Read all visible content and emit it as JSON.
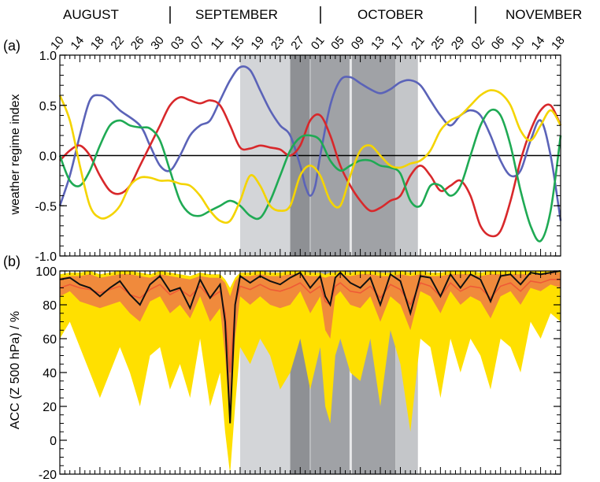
{
  "chart_data": [
    {
      "type": "line",
      "panel_label": "(a)",
      "ylabel": "weather regime index",
      "ylim": [
        -1.0,
        1.0
      ],
      "yticks": [
        -1.0,
        -0.5,
        0.0,
        0.5,
        1.0
      ],
      "ytick_labels": [
        "-1.0",
        "-0.5",
        "0.0",
        "0.5",
        "1.0"
      ],
      "months": [
        "AUGUST",
        "SEPTEMBER",
        "OCTOBER",
        "NOVEMBER"
      ],
      "x_day_labels": [
        "10",
        "14",
        "18",
        "22",
        "26",
        "30",
        "03",
        "07",
        "11",
        "15",
        "19",
        "23",
        "27",
        "01",
        "05",
        "09",
        "13",
        "17",
        "21",
        "25",
        "29",
        "02",
        "06",
        "10",
        "14",
        "18"
      ],
      "x_label_days": [
        0,
        4,
        8,
        12,
        16,
        20,
        24,
        28,
        32,
        36,
        40,
        44,
        48,
        52,
        56,
        60,
        64,
        68,
        72,
        76,
        80,
        84,
        88,
        92,
        96,
        100
      ],
      "xlim_days": [
        0,
        100
      ],
      "shading": [
        {
          "from": 36,
          "to": 46,
          "shade": "light"
        },
        {
          "from": 46,
          "to": 50,
          "shade": "dark"
        },
        {
          "from": 50,
          "to": 58,
          "shade": "darker"
        },
        {
          "from": 58,
          "to": 67,
          "shade": "darker"
        },
        {
          "from": 67,
          "to": 71.5,
          "shade": "medium"
        }
      ],
      "series": [
        {
          "color": "#5b63b8",
          "x": [
            0,
            2,
            4,
            6,
            8,
            10,
            12,
            16,
            18,
            20,
            22,
            24,
            26,
            28,
            30,
            32,
            34,
            36,
            38,
            40,
            42,
            44,
            46,
            48,
            49,
            50,
            51,
            52,
            54,
            56,
            58,
            60,
            62,
            64,
            66,
            68,
            70,
            72,
            74,
            76,
            78,
            80,
            82,
            84,
            86,
            88,
            90,
            92,
            94,
            96,
            98,
            100
          ],
          "y": [
            -0.5,
            -0.2,
            0.2,
            0.55,
            0.6,
            0.55,
            0.45,
            0.3,
            0.1,
            -0.1,
            -0.15,
            0.0,
            0.2,
            0.3,
            0.35,
            0.55,
            0.75,
            0.88,
            0.85,
            0.65,
            0.45,
            0.3,
            0.2,
            -0.1,
            -0.3,
            -0.4,
            -0.3,
            0.0,
            0.5,
            0.75,
            0.78,
            0.72,
            0.66,
            0.62,
            0.66,
            0.73,
            0.75,
            0.7,
            0.55,
            0.4,
            0.3,
            0.4,
            0.45,
            0.4,
            0.2,
            -0.05,
            -0.2,
            -0.15,
            0.15,
            0.35,
            0.0,
            -0.65
          ]
        },
        {
          "color": "#d8282b",
          "x": [
            0,
            2,
            4,
            6,
            8,
            10,
            12,
            14,
            16,
            18,
            20,
            22,
            24,
            26,
            28,
            30,
            32,
            34,
            36,
            38,
            40,
            42,
            44,
            46,
            48,
            50,
            52,
            54,
            56,
            58,
            60,
            62,
            64,
            66,
            68,
            70,
            72,
            74,
            76,
            78,
            80,
            82,
            84,
            86,
            88,
            90,
            92,
            94,
            96,
            98,
            100
          ],
          "y": [
            -0.05,
            0.05,
            0.1,
            0.0,
            -0.2,
            -0.35,
            -0.38,
            -0.3,
            -0.1,
            0.1,
            0.3,
            0.5,
            0.58,
            0.55,
            0.52,
            0.55,
            0.5,
            0.3,
            0.08,
            0.07,
            0.1,
            0.08,
            0.06,
            0.0,
            0.1,
            0.35,
            0.4,
            0.2,
            -0.1,
            -0.3,
            -0.45,
            -0.55,
            -0.52,
            -0.45,
            -0.4,
            -0.2,
            -0.1,
            -0.2,
            -0.35,
            -0.3,
            -0.25,
            -0.4,
            -0.7,
            -0.8,
            -0.75,
            -0.45,
            -0.05,
            0.25,
            0.45,
            0.5,
            0.3
          ]
        },
        {
          "color": "#1faa54",
          "x": [
            0,
            2,
            4,
            6,
            8,
            10,
            12,
            14,
            16,
            18,
            20,
            22,
            24,
            26,
            28,
            30,
            32,
            34,
            36,
            38,
            40,
            42,
            44,
            46,
            48,
            50,
            52,
            54,
            56,
            58,
            60,
            62,
            64,
            66,
            68,
            70,
            72,
            74,
            76,
            78,
            80,
            82,
            84,
            86,
            88,
            90,
            92,
            94,
            96,
            98,
            100
          ],
          "y": [
            0.0,
            -0.25,
            -0.3,
            -0.15,
            0.1,
            0.3,
            0.35,
            0.3,
            0.28,
            0.27,
            0.15,
            -0.15,
            -0.45,
            -0.58,
            -0.6,
            -0.55,
            -0.5,
            -0.45,
            -0.5,
            -0.6,
            -0.62,
            -0.45,
            -0.2,
            0.05,
            0.18,
            0.2,
            0.15,
            -0.05,
            -0.15,
            -0.1,
            -0.05,
            -0.05,
            -0.1,
            -0.12,
            -0.18,
            -0.45,
            -0.5,
            -0.3,
            -0.3,
            -0.4,
            -0.3,
            0.0,
            0.3,
            0.45,
            0.4,
            0.1,
            -0.35,
            -0.7,
            -0.85,
            -0.55,
            0.2
          ]
        },
        {
          "color": "#f4d400",
          "x": [
            0,
            2,
            4,
            6,
            8,
            10,
            12,
            14,
            16,
            18,
            20,
            22,
            24,
            26,
            28,
            30,
            32,
            34,
            36,
            38,
            40,
            42,
            44,
            46,
            48,
            50,
            52,
            54,
            56,
            58,
            60,
            62,
            64,
            66,
            68,
            70,
            72,
            74,
            76,
            78,
            80,
            82,
            84,
            86,
            88,
            90,
            92,
            94,
            96,
            98,
            100
          ],
          "y": [
            0.6,
            0.35,
            -0.1,
            -0.5,
            -0.62,
            -0.6,
            -0.5,
            -0.3,
            -0.22,
            -0.22,
            -0.25,
            -0.25,
            -0.28,
            -0.3,
            -0.4,
            -0.55,
            -0.65,
            -0.65,
            -0.45,
            -0.2,
            -0.3,
            -0.5,
            -0.55,
            -0.5,
            -0.2,
            -0.1,
            -0.2,
            -0.45,
            -0.5,
            -0.2,
            0.05,
            0.1,
            0.0,
            -0.1,
            -0.12,
            -0.08,
            -0.05,
            0.05,
            0.25,
            0.35,
            0.4,
            0.5,
            0.6,
            0.65,
            0.62,
            0.5,
            0.25,
            0.15,
            0.3,
            0.45,
            0.3
          ]
        }
      ]
    },
    {
      "type": "area",
      "panel_label": "(b)",
      "ylabel": "ACC (Z 500 hPa) / %",
      "ylim": [
        -20,
        100
      ],
      "yticks": [
        -20,
        0,
        20,
        40,
        60,
        80,
        100
      ],
      "ytick_labels": [
        "-20",
        "0",
        "20",
        "40",
        "60",
        "80",
        "100"
      ],
      "xlim_days": [
        0,
        100
      ],
      "bands": [
        {
          "color": "#ffe000",
          "x": [
            0,
            2,
            4,
            6,
            8,
            10,
            12,
            14,
            16,
            18,
            20,
            22,
            24,
            26,
            28,
            30,
            32,
            33,
            34,
            35,
            36,
            38,
            40,
            42,
            44,
            46,
            48,
            50,
            52,
            53,
            54,
            55,
            56,
            58,
            60,
            62,
            64,
            66,
            68,
            70,
            72,
            74,
            76,
            78,
            80,
            82,
            84,
            86,
            88,
            90,
            92,
            94,
            96,
            98,
            100
          ],
          "low": [
            60,
            70,
            55,
            40,
            25,
            40,
            55,
            40,
            20,
            50,
            55,
            30,
            45,
            25,
            60,
            20,
            40,
            5,
            -20,
            20,
            55,
            45,
            60,
            50,
            30,
            40,
            60,
            30,
            55,
            20,
            10,
            50,
            60,
            40,
            35,
            60,
            20,
            65,
            45,
            5,
            60,
            55,
            25,
            60,
            40,
            60,
            50,
            30,
            60,
            55,
            40,
            70,
            60,
            75,
            70
          ],
          "high": [
            98,
            99,
            99,
            100,
            98,
            99,
            100,
            100,
            99,
            98,
            100,
            99,
            98,
            97,
            99,
            98,
            98,
            95,
            90,
            96,
            99,
            99,
            100,
            99,
            99,
            100,
            100,
            99,
            99,
            98,
            99,
            99,
            100,
            99,
            100,
            100,
            99,
            99,
            100,
            99,
            100,
            99,
            99,
            100,
            100,
            100,
            99,
            100,
            100,
            100,
            100,
            100,
            100,
            100,
            100
          ]
        },
        {
          "color": "#f08a3c",
          "x": [
            0,
            2,
            4,
            6,
            8,
            10,
            12,
            14,
            16,
            18,
            20,
            22,
            24,
            26,
            28,
            30,
            32,
            33,
            34,
            35,
            36,
            38,
            40,
            42,
            44,
            46,
            48,
            50,
            52,
            53,
            54,
            55,
            56,
            58,
            60,
            62,
            64,
            66,
            68,
            70,
            72,
            74,
            76,
            78,
            80,
            82,
            84,
            86,
            88,
            90,
            92,
            94,
            96,
            98,
            100
          ],
          "low": [
            85,
            88,
            82,
            80,
            78,
            80,
            82,
            75,
            70,
            82,
            85,
            75,
            80,
            72,
            85,
            70,
            78,
            50,
            10,
            60,
            85,
            80,
            85,
            80,
            78,
            80,
            88,
            75,
            85,
            65,
            60,
            85,
            88,
            80,
            78,
            85,
            70,
            85,
            80,
            65,
            88,
            85,
            75,
            88,
            80,
            85,
            82,
            72,
            85,
            88,
            80,
            90,
            88,
            92,
            90
          ],
          "high": [
            96,
            97,
            97,
            98,
            96,
            97,
            98,
            98,
            97,
            96,
            98,
            97,
            96,
            95,
            97,
            96,
            96,
            93,
            85,
            94,
            97,
            97,
            98,
            97,
            97,
            98,
            98,
            97,
            97,
            96,
            97,
            97,
            98,
            97,
            98,
            98,
            97,
            97,
            98,
            97,
            98,
            97,
            97,
            98,
            98,
            98,
            97,
            98,
            98,
            98,
            98,
            98,
            98,
            99,
            99
          ]
        }
      ],
      "series": [
        {
          "color": "#ef5a36",
          "x": [
            0,
            2,
            4,
            6,
            8,
            10,
            12,
            14,
            16,
            18,
            20,
            22,
            24,
            26,
            28,
            30,
            32,
            33,
            34,
            35,
            36,
            38,
            40,
            42,
            44,
            46,
            48,
            50,
            52,
            53,
            54,
            55,
            56,
            58,
            60,
            62,
            64,
            66,
            68,
            70,
            72,
            74,
            76,
            78,
            80,
            82,
            84,
            86,
            88,
            90,
            92,
            94,
            96,
            98,
            100
          ],
          "y": [
            90,
            92,
            90,
            89,
            87,
            89,
            91,
            86,
            84,
            89,
            92,
            86,
            89,
            85,
            91,
            84,
            88,
            75,
            40,
            80,
            91,
            89,
            92,
            89,
            88,
            90,
            93,
            87,
            91,
            82,
            80,
            91,
            93,
            88,
            87,
            91,
            84,
            92,
            89,
            80,
            93,
            91,
            85,
            93,
            88,
            91,
            90,
            84,
            91,
            93,
            88,
            94,
            93,
            95,
            95
          ]
        },
        {
          "color": "#111111",
          "x": [
            0,
            2,
            4,
            6,
            8,
            10,
            12,
            14,
            16,
            18,
            20,
            22,
            24,
            26,
            28,
            30,
            32,
            33,
            34,
            35,
            36,
            38,
            40,
            42,
            44,
            46,
            48,
            50,
            52,
            53,
            54,
            55,
            56,
            58,
            60,
            62,
            64,
            66,
            68,
            70,
            72,
            74,
            76,
            78,
            80,
            82,
            84,
            86,
            88,
            90,
            92,
            94,
            96,
            98,
            100
          ],
          "y": [
            95,
            96,
            92,
            90,
            85,
            90,
            94,
            86,
            80,
            92,
            97,
            88,
            90,
            78,
            95,
            84,
            92,
            70,
            10,
            80,
            97,
            93,
            97,
            94,
            92,
            96,
            99,
            90,
            97,
            85,
            80,
            96,
            99,
            93,
            90,
            96,
            80,
            98,
            94,
            75,
            97,
            96,
            85,
            98,
            90,
            98,
            95,
            82,
            97,
            98,
            92,
            99,
            98,
            99,
            100
          ]
        }
      ]
    }
  ]
}
